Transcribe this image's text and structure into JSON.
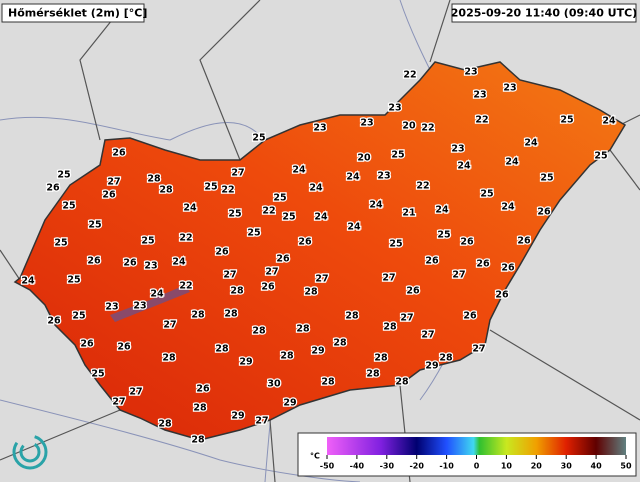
{
  "header": {
    "title": "Hőmérséklet (2m) [°C]",
    "timestamp": "2025-09-20 11:40 (09:40 UTC)"
  },
  "stations": {
    "values": [
      22,
      23,
      23,
      23,
      23,
      23,
      23,
      20,
      22,
      22,
      25,
      24,
      25,
      23,
      24,
      25,
      20,
      24,
      25,
      26,
      27,
      24,
      24,
      23,
      24,
      25,
      25,
      27,
      28,
      28,
      25,
      22,
      24,
      22,
      26,
      26,
      25,
      25,
      25,
      24,
      22,
      25,
      24,
      24,
      21,
      24,
      24,
      26,
      25,
      25,
      24,
      22,
      25,
      25,
      25,
      26,
      25,
      25,
      26,
      26,
      26,
      24,
      25,
      26,
      26,
      23,
      24,
      26,
      27,
      26,
      26,
      27,
      27,
      27,
      26,
      22,
      24,
      28,
      26,
      28,
      27,
      26,
      26,
      23,
      23,
      28,
      28,
      26,
      25,
      27,
      28,
      27,
      28,
      26,
      28,
      28,
      27,
      26,
      26,
      28,
      28,
      29,
      27,
      28,
      29,
      28,
      28,
      28,
      29,
      25,
      28,
      28,
      28,
      30,
      27,
      26,
      27,
      28,
      29,
      28,
      29,
      27,
      28
    ]
  },
  "colorbar": {
    "unit": "°C",
    "ticks": [
      -50,
      -40,
      -30,
      -20,
      -10,
      0,
      10,
      20,
      30,
      40,
      50
    ]
  }
}
